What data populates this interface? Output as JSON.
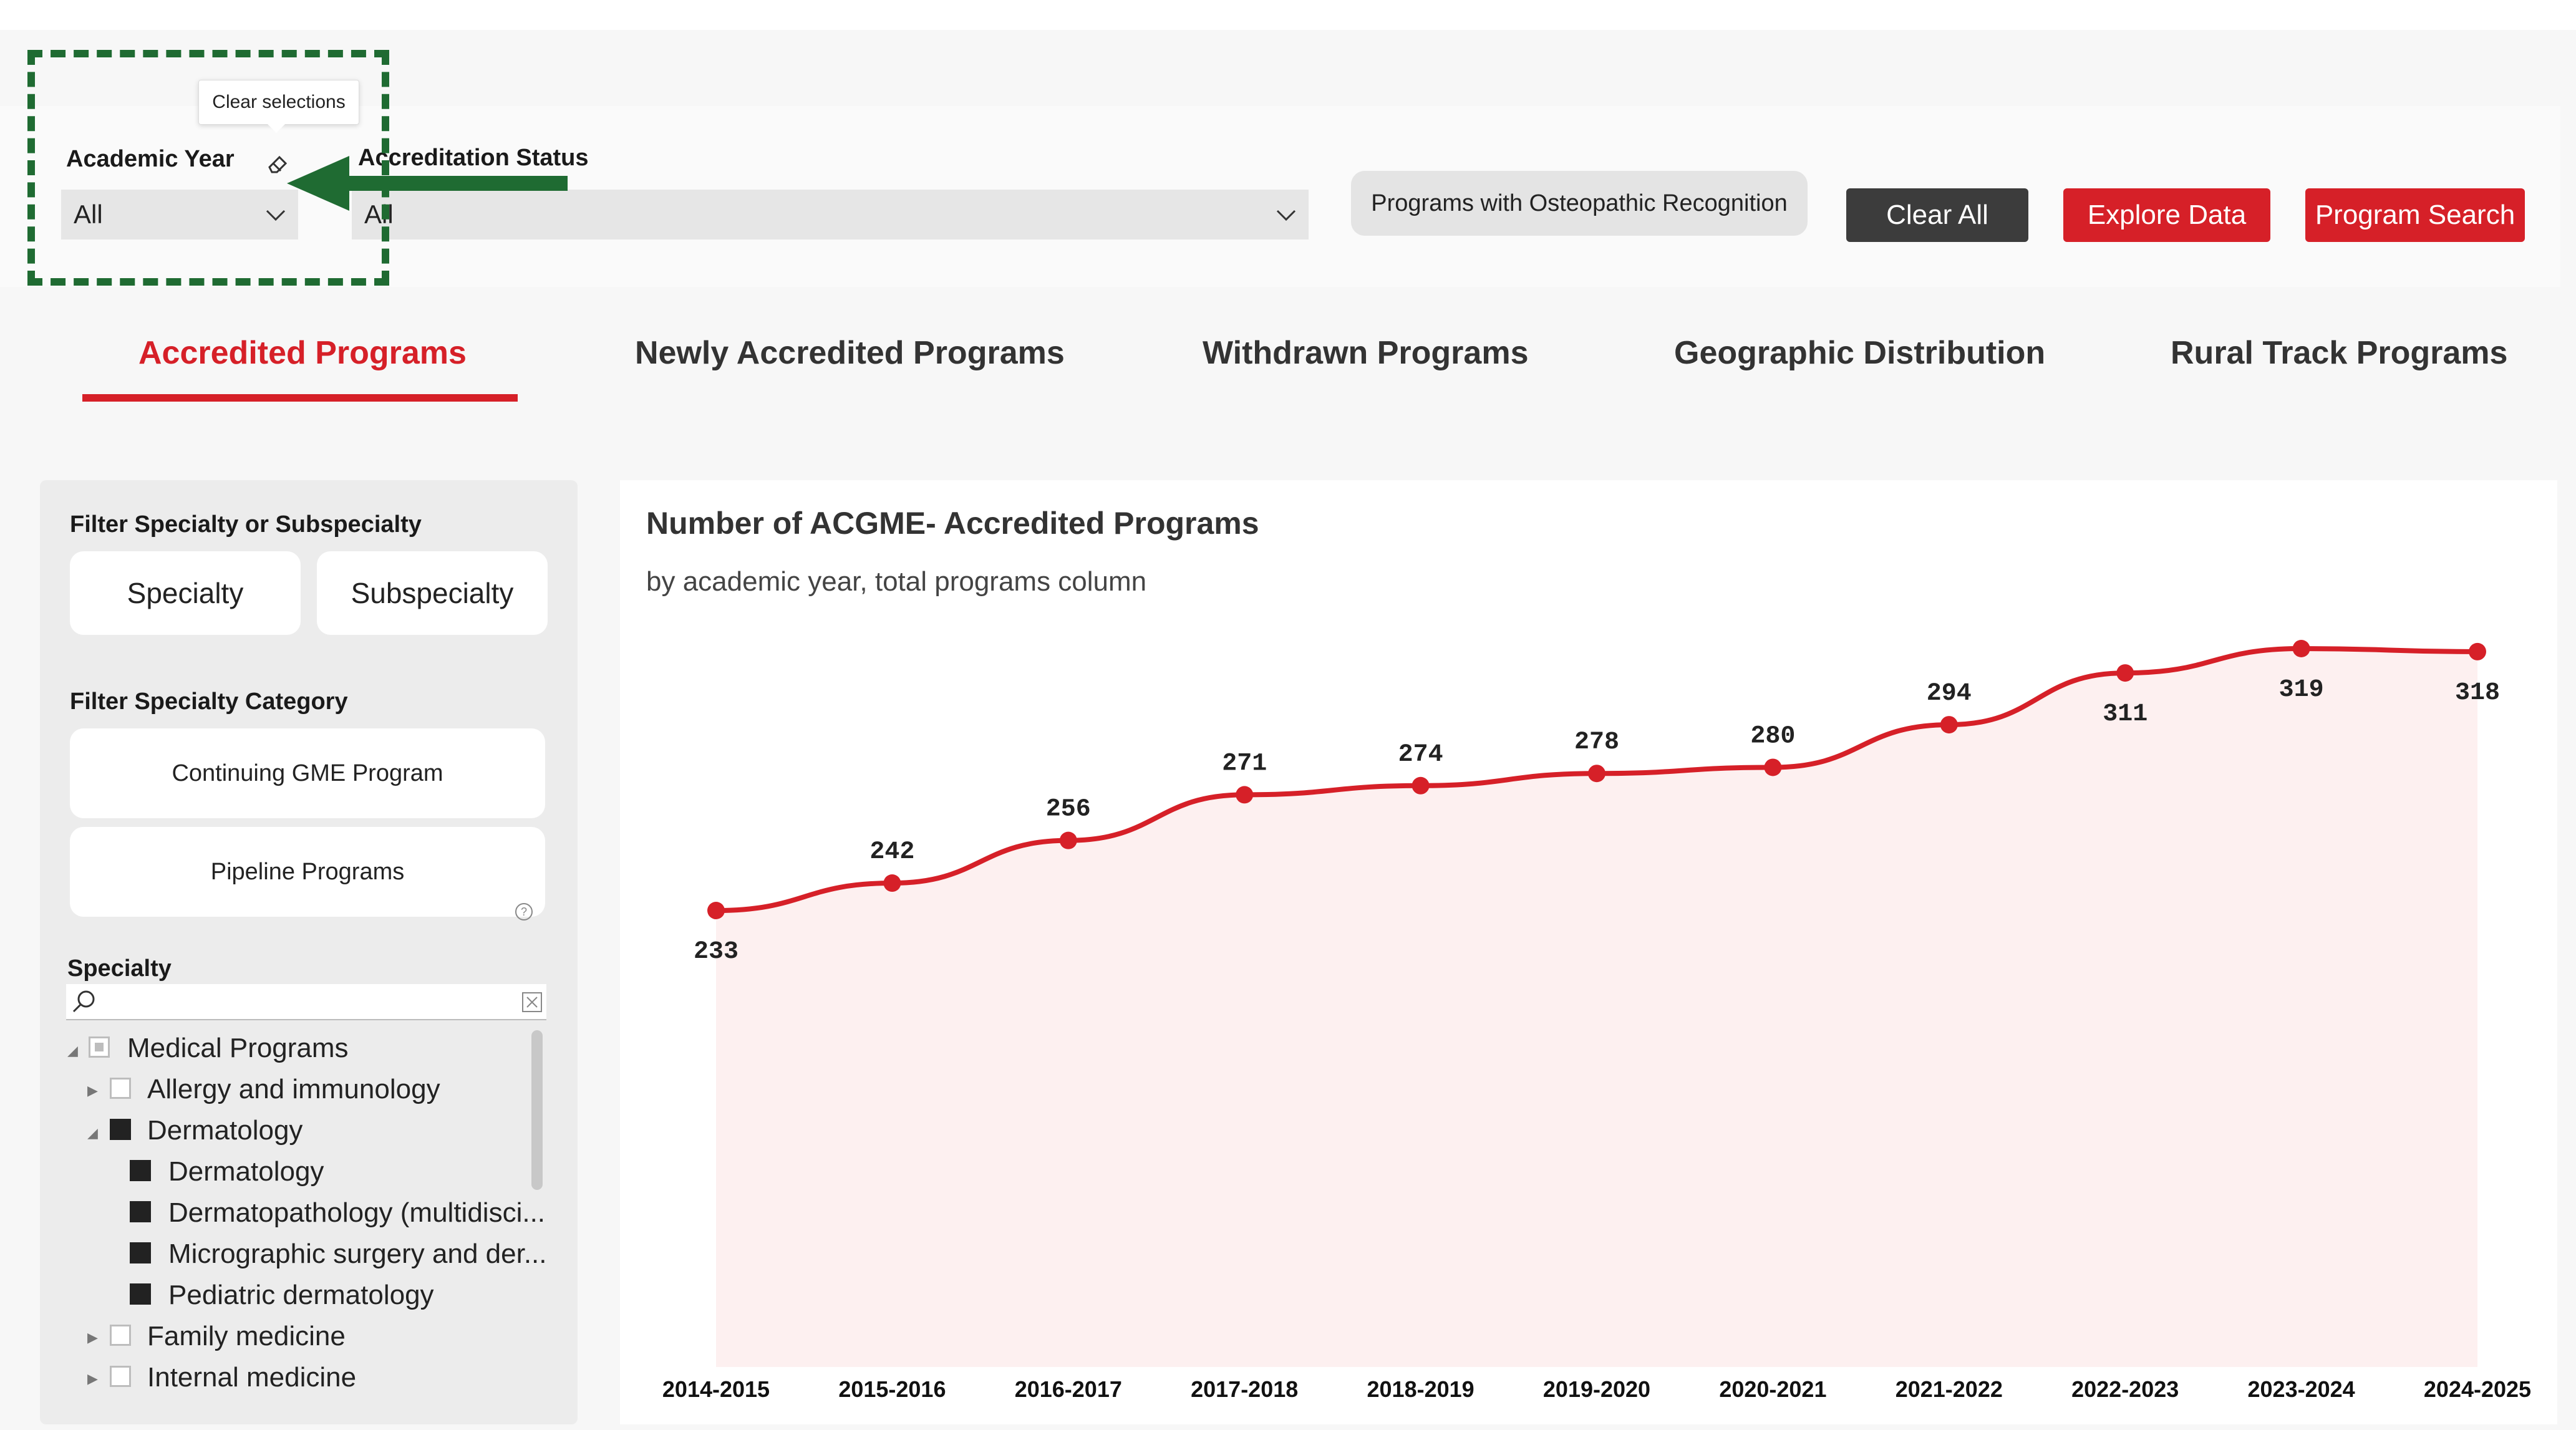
{
  "filters": {
    "academic_year": {
      "label": "Academic Year",
      "value": "All",
      "tooltip": "Clear selections"
    },
    "accreditation_status": {
      "label": "Accreditation Status",
      "value": "All"
    },
    "osteopathic_button": "Programs with Osteopathic Recognition",
    "clear_all": "Clear All",
    "explore_data": "Explore Data",
    "program_search": "Program Search"
  },
  "tabs": [
    {
      "label": "Accredited Programs",
      "active": true
    },
    {
      "label": "Newly Accredited Programs",
      "active": false
    },
    {
      "label": "Withdrawn Programs",
      "active": false
    },
    {
      "label": "Geographic Distribution",
      "active": false
    },
    {
      "label": "Rural Track Programs",
      "active": false
    }
  ],
  "left_panel": {
    "filter_specialty_label": "Filter Specialty or Subspecialty",
    "specialty_button": "Specialty",
    "subspecialty_button": "Subspecialty",
    "filter_category_label": "Filter Specialty Category",
    "continuing_gme": "Continuing GME Program",
    "pipeline": "Pipeline Programs",
    "specialty_label": "Specialty",
    "tree": [
      {
        "label": "Medical Programs",
        "state": "partial",
        "level": 0,
        "expanded": true
      },
      {
        "label": "Allergy and immunology",
        "state": "empty",
        "level": 1,
        "expanded": false
      },
      {
        "label": "Dermatology",
        "state": "filled",
        "level": 1,
        "expanded": true
      },
      {
        "label": "Dermatology",
        "state": "filled",
        "level": 2
      },
      {
        "label": "Dermatopathology (multidisci...",
        "state": "filled",
        "level": 2
      },
      {
        "label": "Micrographic surgery and der...",
        "state": "filled",
        "level": 2
      },
      {
        "label": "Pediatric dermatology",
        "state": "filled",
        "level": 2
      },
      {
        "label": "Family medicine",
        "state": "empty",
        "level": 1,
        "expanded": false
      },
      {
        "label": "Internal medicine",
        "state": "empty",
        "level": 1,
        "expanded": false
      }
    ]
  },
  "chart": {
    "title": "Number of ACGME- Accredited Programs",
    "subtitle": "by academic year, total programs column"
  },
  "colors": {
    "accent": "#d62028",
    "dark_button": "#3c3c3c",
    "annotation": "#1f6b32",
    "area_fill": "#fdf0f0"
  },
  "chart_data": {
    "type": "area",
    "categories": [
      "2014-2015",
      "2015-2016",
      "2016-2017",
      "2017-2018",
      "2018-2019",
      "2019-2020",
      "2020-2021",
      "2021-2022",
      "2022-2023",
      "2023-2024",
      "2024-2025"
    ],
    "values": [
      233,
      242,
      256,
      271,
      274,
      278,
      280,
      294,
      311,
      319,
      318
    ],
    "title": "Number of ACGME- Accredited Programs",
    "subtitle": "by academic year, total programs column",
    "data_labels": true,
    "grid": false
  }
}
